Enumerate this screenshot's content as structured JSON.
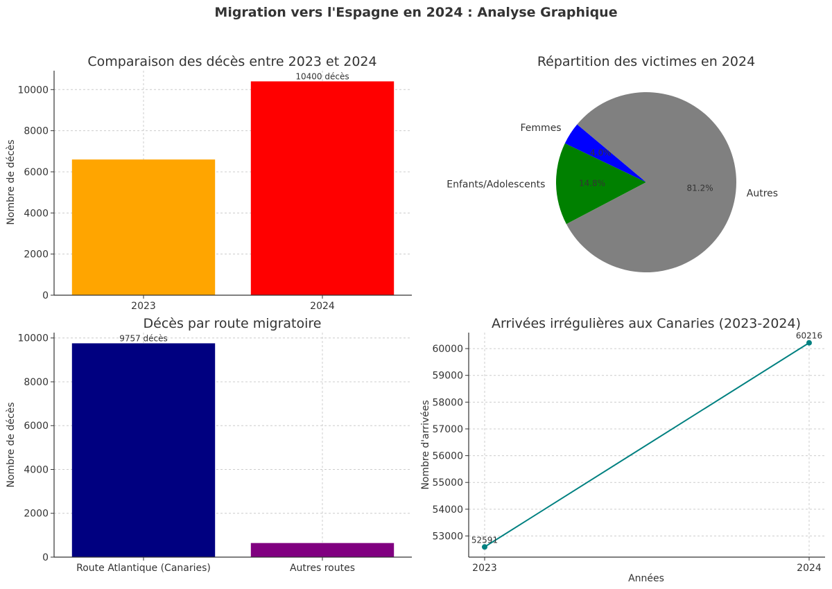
{
  "figure": {
    "suptitle": "Migration vers l'Espagne en 2024 : Analyse Graphique"
  },
  "chart_data": [
    {
      "id": "deaths-by-year",
      "type": "bar",
      "title": "Comparaison des décès entre 2023 et 2024",
      "xlabel": "",
      "ylabel": "Nombre de décès",
      "categories": [
        "2023",
        "2024"
      ],
      "values": [
        6600,
        10400
      ],
      "colors": [
        "#ffa500",
        "#ff0000"
      ],
      "data_labels": [
        "",
        "10400 décès"
      ],
      "ylim": [
        0,
        10920
      ],
      "yticks": [
        0,
        2000,
        4000,
        6000,
        8000,
        10000
      ],
      "grid": true
    },
    {
      "id": "victims-breakdown",
      "type": "pie",
      "title": "Répartition des victimes en 2024",
      "labels": [
        "Femmes",
        "Enfants/Adolescents",
        "Autres"
      ],
      "values": [
        4.0,
        14.8,
        81.2
      ],
      "pct_labels": [
        "4.0%",
        "14.8%",
        "81.2%"
      ],
      "colors": [
        "#0000ff",
        "#008000",
        "#808080"
      ],
      "start_angle": 140
    },
    {
      "id": "deaths-by-route",
      "type": "bar",
      "title": "Décès par route migratoire",
      "xlabel": "",
      "ylabel": "Nombre de décès",
      "categories": [
        "Route Atlantique (Canaries)",
        "Autres routes"
      ],
      "values": [
        9757,
        643
      ],
      "colors": [
        "#000080",
        "#800080"
      ],
      "data_labels": [
        "9757 décès",
        ""
      ],
      "ylim": [
        0,
        10245
      ],
      "yticks": [
        0,
        2000,
        4000,
        6000,
        8000,
        10000
      ],
      "grid": true
    },
    {
      "id": "arrivals-canaries",
      "type": "line",
      "title": "Arrivées irrégulières aux Canaries (2023-2024)",
      "xlabel": "Années",
      "ylabel": "Nombre d'arrivées",
      "x": [
        "2023",
        "2024"
      ],
      "values": [
        52591,
        60216
      ],
      "data_labels": [
        "52591",
        "60216"
      ],
      "color": "#008080",
      "ylim": [
        52210,
        60597
      ],
      "yticks": [
        53000,
        54000,
        55000,
        56000,
        57000,
        58000,
        59000,
        60000
      ],
      "grid": true
    }
  ]
}
